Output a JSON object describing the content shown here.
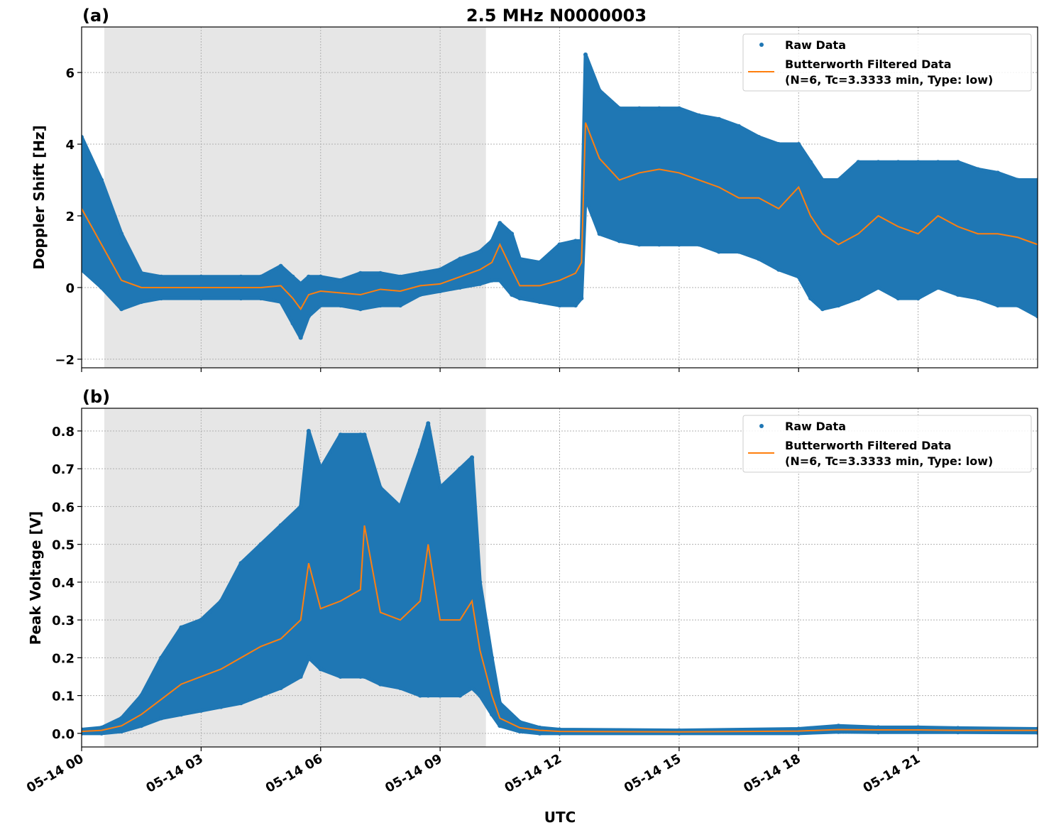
{
  "title": "2.5 MHz N0000003",
  "xlabel": "UTC",
  "x_tick_labels": [
    "05-14 00",
    "05-14 03",
    "05-14 06",
    "05-14 09",
    "05-14 12",
    "05-14 15",
    "05-14 18",
    "05-14 21"
  ],
  "colors": {
    "raw": "#1f77b4",
    "filtered": "#ff7f0e",
    "shade": "#e6e6e6"
  },
  "legend": {
    "raw": "Raw Data",
    "filtered_line1": "Butterworth Filtered Data",
    "filtered_line2": "(N=6, Tc=3.3333 min, Type: low)",
    "placement": "top-right"
  },
  "chart_data": [
    {
      "type": "scatter",
      "panel_label": "(a)",
      "ylabel": "Doppler Shift [Hz]",
      "xunit": "hours UTC on 05-14",
      "xlim": [
        0,
        24
      ],
      "ylim": [
        -2.24,
        7.27
      ],
      "y_ticks": [
        -2,
        0,
        2,
        4,
        6
      ],
      "y_tick_labels": [
        "−2",
        "0",
        "2",
        "4",
        "6"
      ],
      "grid": true,
      "shaded_interval": [
        0.57,
        10.15
      ],
      "x": [
        0,
        0.5,
        1,
        1.5,
        2,
        3,
        4,
        4.5,
        5,
        5.3,
        5.5,
        5.7,
        6,
        6.5,
        7,
        7.5,
        8,
        8.5,
        9,
        9.5,
        10,
        10.3,
        10.5,
        10.8,
        11,
        11.5,
        12,
        12.4,
        12.55,
        12.65,
        13,
        13.5,
        14,
        14.5,
        15,
        15.5,
        16,
        16.5,
        17,
        17.5,
        18,
        18.3,
        18.6,
        19,
        19.5,
        20,
        20.5,
        21,
        21.5,
        22,
        22.5,
        23,
        23.5,
        24
      ],
      "filtered": [
        2.2,
        1.2,
        0.2,
        0,
        0,
        0,
        0,
        0,
        0.05,
        -0.3,
        -0.6,
        -0.2,
        -0.1,
        -0.15,
        -0.2,
        -0.05,
        -0.1,
        0.05,
        0.1,
        0.3,
        0.5,
        0.7,
        1.2,
        0.5,
        0.05,
        0.05,
        0.2,
        0.4,
        0.7,
        4.6,
        3.6,
        3.0,
        3.2,
        3.3,
        3.2,
        3.0,
        2.8,
        2.5,
        2.5,
        2.2,
        2.8,
        2.0,
        1.5,
        1.2,
        1.5,
        2.0,
        1.7,
        1.5,
        2.0,
        1.7,
        1.5,
        1.5,
        1.4,
        1.2
      ],
      "raw_lower": [
        0.5,
        0,
        -0.6,
        -0.4,
        -0.3,
        -0.3,
        -0.3,
        -0.3,
        -0.4,
        -1.0,
        -1.4,
        -0.8,
        -0.5,
        -0.5,
        -0.6,
        -0.5,
        -0.5,
        -0.2,
        -0.1,
        0,
        0.1,
        0.2,
        0.2,
        -0.2,
        -0.3,
        -0.4,
        -0.5,
        -0.5,
        -0.3,
        2.5,
        1.5,
        1.3,
        1.2,
        1.2,
        1.2,
        1.2,
        1.0,
        1.0,
        0.8,
        0.5,
        0.3,
        -0.3,
        -0.6,
        -0.5,
        -0.3,
        0,
        -0.3,
        -0.3,
        0,
        -0.2,
        -0.3,
        -0.5,
        -0.5,
        -0.8
      ],
      "raw_upper": [
        4.2,
        3.0,
        1.5,
        0.4,
        0.3,
        0.3,
        0.3,
        0.3,
        0.6,
        0.3,
        0.1,
        0.3,
        0.3,
        0.2,
        0.4,
        0.4,
        0.3,
        0.4,
        0.5,
        0.8,
        1.0,
        1.3,
        1.8,
        1.5,
        0.8,
        0.7,
        1.2,
        1.3,
        1.3,
        6.5,
        5.5,
        5.0,
        5.0,
        5.0,
        5.0,
        4.8,
        4.7,
        4.5,
        4.2,
        4.0,
        4.0,
        3.5,
        3.0,
        3.0,
        3.5,
        3.5,
        3.5,
        3.5,
        3.5,
        3.5,
        3.3,
        3.2,
        3.0,
        3.0
      ]
    },
    {
      "type": "scatter",
      "panel_label": "(b)",
      "ylabel": "Peak Voltage [V]",
      "xunit": "hours UTC on 05-14",
      "xlim": [
        0,
        24
      ],
      "ylim": [
        -0.036,
        0.86
      ],
      "y_ticks": [
        0,
        0.1,
        0.2,
        0.3,
        0.4,
        0.5,
        0.6,
        0.7,
        0.8
      ],
      "y_tick_labels": [
        "0.0",
        "0.1",
        "0.2",
        "0.3",
        "0.4",
        "0.5",
        "0.6",
        "0.7",
        "0.8"
      ],
      "grid": true,
      "shaded_interval": [
        0.57,
        10.15
      ],
      "x": [
        0,
        0.5,
        1,
        1.5,
        2,
        2.5,
        3,
        3.5,
        4,
        4.5,
        5,
        5.5,
        5.7,
        6,
        6.5,
        7,
        7.1,
        7.5,
        8,
        8.5,
        8.7,
        9,
        9.5,
        9.8,
        10,
        10.3,
        10.5,
        11,
        11.5,
        12,
        15,
        18,
        19,
        20,
        21,
        22,
        24
      ],
      "filtered": [
        0.005,
        0.008,
        0.02,
        0.05,
        0.09,
        0.13,
        0.15,
        0.17,
        0.2,
        0.23,
        0.25,
        0.3,
        0.45,
        0.33,
        0.35,
        0.38,
        0.55,
        0.32,
        0.3,
        0.35,
        0.5,
        0.3,
        0.3,
        0.35,
        0.22,
        0.1,
        0.04,
        0.015,
        0.008,
        0.005,
        0.004,
        0.006,
        0.01,
        0.009,
        0.009,
        0.008,
        0.008
      ],
      "raw_lower": [
        0,
        0,
        0.005,
        0.02,
        0.04,
        0.05,
        0.06,
        0.07,
        0.08,
        0.1,
        0.12,
        0.15,
        0.2,
        0.17,
        0.15,
        0.15,
        0.15,
        0.13,
        0.12,
        0.1,
        0.1,
        0.1,
        0.1,
        0.12,
        0.1,
        0.05,
        0.02,
        0.005,
        0,
        0,
        0,
        0,
        0.004,
        0.003,
        0.003,
        0.003,
        0.002
      ],
      "raw_upper": [
        0.01,
        0.015,
        0.04,
        0.1,
        0.2,
        0.28,
        0.3,
        0.35,
        0.45,
        0.5,
        0.55,
        0.6,
        0.8,
        0.7,
        0.79,
        0.79,
        0.79,
        0.65,
        0.6,
        0.75,
        0.82,
        0.65,
        0.7,
        0.73,
        0.4,
        0.2,
        0.08,
        0.03,
        0.015,
        0.01,
        0.008,
        0.012,
        0.02,
        0.016,
        0.016,
        0.014,
        0.012
      ]
    }
  ]
}
